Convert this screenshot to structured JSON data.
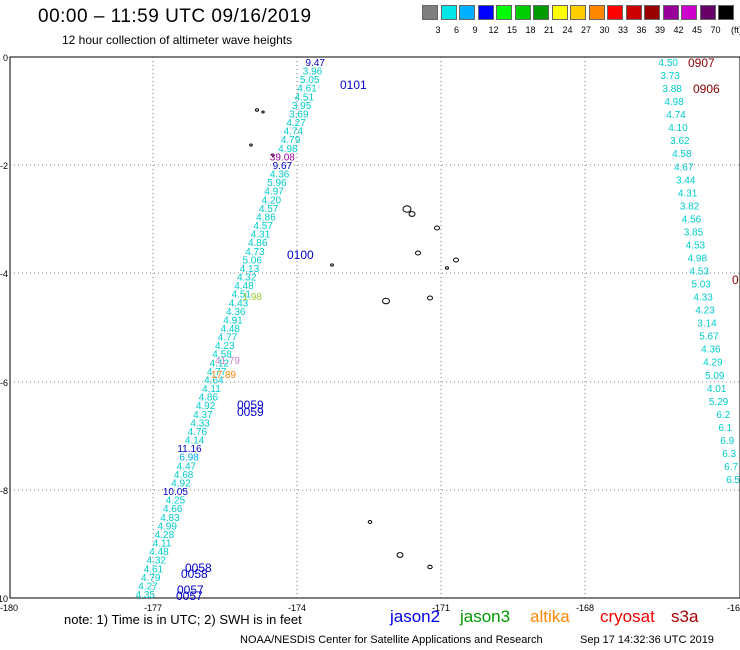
{
  "header": {
    "title": "00:00 – 11:59 UTC 09/16/2019",
    "subtitle": "12 hour collection of altimeter wave heights"
  },
  "legend": {
    "unit": "(ft)",
    "bins": [
      {
        "label": "3",
        "color": "#7f7f7f"
      },
      {
        "label": "6",
        "color": "#00e5e5"
      },
      {
        "label": "9",
        "color": "#00b0ff"
      },
      {
        "label": "12",
        "color": "#0000ff"
      },
      {
        "label": "15",
        "color": "#00ff00"
      },
      {
        "label": "18",
        "color": "#00cc00"
      },
      {
        "label": "21",
        "color": "#009900"
      },
      {
        "label": "24",
        "color": "#ffff00"
      },
      {
        "label": "27",
        "color": "#ffcc00"
      },
      {
        "label": "30",
        "color": "#ff8800"
      },
      {
        "label": "33",
        "color": "#ff0000"
      },
      {
        "label": "36",
        "color": "#cc0000"
      },
      {
        "label": "39",
        "color": "#990000"
      },
      {
        "label": "42",
        "color": "#990099"
      },
      {
        "label": "45",
        "color": "#cc00cc"
      },
      {
        "label": "70",
        "color": "#660066"
      },
      {
        "label": "",
        "color": "#000000"
      }
    ]
  },
  "axes": {
    "lon_labels": [
      "-180",
      "-177",
      "-174",
      "-171",
      "-168",
      "-16"
    ],
    "lat_labels": [
      "0",
      "-2",
      "-4",
      "-6",
      "-8",
      "-10"
    ]
  },
  "track_a": {
    "swh": [
      "9.47",
      "3.96",
      "5.05",
      "4.61",
      "4.51",
      "3.95",
      "3.69",
      "4.27",
      "4.74",
      "4.79",
      "4.98",
      "39.08",
      "9.67",
      "4.36",
      "5.96",
      "4.97",
      "4.20",
      "4.57",
      "4.86",
      "4.57",
      "4.31",
      "4.86",
      "4.73",
      "5.06",
      "4.13",
      "4.32",
      "4.48",
      "4.51",
      "4.43",
      "4.36",
      "4.91",
      "4.48",
      "4.77",
      "4.23",
      "4.58",
      "4.12",
      "4.77",
      "4.64",
      "4.11",
      "4.86",
      "4.92",
      "4.37",
      "4.33",
      "4.76",
      "4.14",
      "11.16",
      "6.98",
      "4.47",
      "4.68",
      "4.92",
      "10.05",
      "4.25",
      "4.66",
      "4.83",
      "4.99",
      "4.28",
      "4.11",
      "4.48",
      "4.32",
      "4.61",
      "4.79",
      "4.27",
      "4.35"
    ],
    "highlights": [
      {
        "text": "1.98",
        "color": "#9acd32"
      },
      {
        "text": "41.79",
        "color": "#cc88cc"
      },
      {
        "text": "17.89",
        "color": "#ff8800"
      }
    ],
    "times": [
      "0101",
      "0100",
      "0059",
      "0059",
      "0058",
      "0058",
      "0057",
      "0057"
    ]
  },
  "track_b": {
    "swh": [
      "4.50",
      "3.73",
      "3.88",
      "4.98",
      "4.74",
      "4.10",
      "3.62",
      "4.58",
      "4.67",
      "3.44",
      "4.31",
      "3.82",
      "4.56",
      "3.85",
      "4.53",
      "4.98",
      "4.53",
      "5.03",
      "4.33",
      "4.23",
      "3.14",
      "5.67",
      "4.36",
      "4.29",
      "5.09",
      "4.01",
      "5.29",
      "6.2",
      "6.1",
      "6.9",
      "6.3",
      "6.7",
      "6.5"
    ],
    "times": [
      "0907",
      "0906",
      "0"
    ]
  },
  "footer": {
    "note": "note:  1) Time is in UTC;  2) SWH is in feet",
    "satellites": [
      {
        "name": "jason2",
        "color": "#0000ee"
      },
      {
        "name": "jason3",
        "color": "#009900"
      },
      {
        "name": "altika",
        "color": "#ff8800"
      },
      {
        "name": "cryosat",
        "color": "#ee0000"
      },
      {
        "name": "s3a",
        "color": "#aa0000"
      }
    ],
    "credit": "NOAA/NESDIS Center for Satellite Applications and Research",
    "timestamp": "Sep 17 14:32:36 UTC 2019"
  }
}
